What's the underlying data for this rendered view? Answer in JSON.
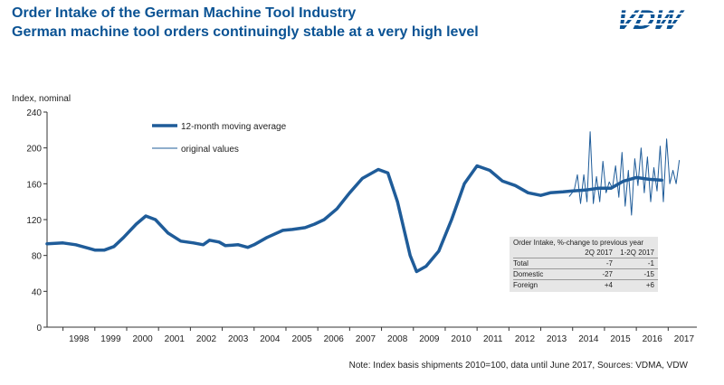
{
  "header": {
    "title_line1": "Order Intake of the German Machine Tool Industry",
    "title_line2": "German machine tool orders continuingly stable at a very high level",
    "logo_text": "VDW"
  },
  "note": "Note: Index basis shipments  2010=100, data until June 2017, Sources: VDMA, VDW",
  "colors": {
    "title": "#0b5394",
    "series": "#1f5c99",
    "axis": "#333333",
    "stat_bg": "#e6e6e6"
  },
  "chart_data": {
    "type": "line",
    "ylabel": "Index, nominal",
    "ylim": [
      0,
      240
    ],
    "yticks": [
      0,
      40,
      80,
      120,
      160,
      200,
      240
    ],
    "x_range": [
      1997.5,
      2017.9
    ],
    "x_tick_labels": [
      "1998",
      "1999",
      "2000",
      "2001",
      "2002",
      "2003",
      "2004",
      "2005",
      "2006",
      "2007",
      "2008",
      "2009",
      "2010",
      "2011",
      "2012",
      "2013",
      "2014",
      "2015",
      "2016",
      "2017"
    ],
    "legend": [
      "12-month moving average",
      "original values"
    ],
    "series": [
      {
        "name": "12-month moving average",
        "points": [
          [
            1997.5,
            93
          ],
          [
            1998.0,
            94
          ],
          [
            1998.4,
            92
          ],
          [
            1998.8,
            88
          ],
          [
            1999.0,
            86
          ],
          [
            1999.3,
            86
          ],
          [
            1999.6,
            90
          ],
          [
            1999.9,
            100
          ],
          [
            2000.3,
            115
          ],
          [
            2000.6,
            124
          ],
          [
            2000.9,
            120
          ],
          [
            2001.3,
            105
          ],
          [
            2001.7,
            96
          ],
          [
            2002.1,
            94
          ],
          [
            2002.4,
            92
          ],
          [
            2002.6,
            97
          ],
          [
            2002.9,
            95
          ],
          [
            2003.1,
            91
          ],
          [
            2003.5,
            92
          ],
          [
            2003.8,
            89
          ],
          [
            2004.0,
            92
          ],
          [
            2004.4,
            100
          ],
          [
            2004.9,
            108
          ],
          [
            2005.2,
            109
          ],
          [
            2005.6,
            111
          ],
          [
            2005.9,
            115
          ],
          [
            2006.2,
            120
          ],
          [
            2006.6,
            132
          ],
          [
            2007.0,
            150
          ],
          [
            2007.4,
            166
          ],
          [
            2007.9,
            176
          ],
          [
            2008.2,
            172
          ],
          [
            2008.5,
            140
          ],
          [
            2008.9,
            80
          ],
          [
            2009.1,
            62
          ],
          [
            2009.4,
            68
          ],
          [
            2009.8,
            85
          ],
          [
            2010.2,
            120
          ],
          [
            2010.6,
            160
          ],
          [
            2011.0,
            180
          ],
          [
            2011.4,
            175
          ],
          [
            2011.8,
            163
          ],
          [
            2012.2,
            158
          ],
          [
            2012.6,
            150
          ],
          [
            2013.0,
            147
          ],
          [
            2013.3,
            150
          ],
          [
            2013.7,
            151
          ],
          [
            2014.0,
            152
          ],
          [
            2014.4,
            153
          ],
          [
            2014.8,
            155
          ],
          [
            2015.2,
            155
          ],
          [
            2015.6,
            163
          ],
          [
            2016.0,
            167
          ],
          [
            2016.4,
            165
          ],
          [
            2016.8,
            164
          ]
        ]
      },
      {
        "name": "original values",
        "points": [
          [
            2013.9,
            146
          ],
          [
            2014.05,
            153
          ],
          [
            2014.15,
            170
          ],
          [
            2014.25,
            138
          ],
          [
            2014.35,
            170
          ],
          [
            2014.45,
            140
          ],
          [
            2014.55,
            218
          ],
          [
            2014.65,
            138
          ],
          [
            2014.75,
            168
          ],
          [
            2014.85,
            140
          ],
          [
            2014.95,
            185
          ],
          [
            2015.05,
            150
          ],
          [
            2015.15,
            162
          ],
          [
            2015.25,
            155
          ],
          [
            2015.35,
            180
          ],
          [
            2015.45,
            145
          ],
          [
            2015.55,
            195
          ],
          [
            2015.65,
            135
          ],
          [
            2015.75,
            175
          ],
          [
            2015.85,
            125
          ],
          [
            2015.95,
            188
          ],
          [
            2016.05,
            158
          ],
          [
            2016.15,
            200
          ],
          [
            2016.25,
            150
          ],
          [
            2016.35,
            190
          ],
          [
            2016.45,
            140
          ],
          [
            2016.55,
            178
          ],
          [
            2016.65,
            152
          ],
          [
            2016.75,
            202
          ],
          [
            2016.85,
            140
          ],
          [
            2016.95,
            210
          ],
          [
            2017.05,
            160
          ],
          [
            2017.15,
            175
          ],
          [
            2017.25,
            160
          ],
          [
            2017.35,
            186
          ]
        ]
      }
    ],
    "table": {
      "title": "Order Intake, %-change to previous year",
      "columns": [
        "",
        "2Q 2017",
        "1-2Q 2017"
      ],
      "rows": [
        [
          "Total",
          "-7",
          "-1"
        ],
        [
          "Domestic",
          "-27",
          "-15"
        ],
        [
          "Foreign",
          "+4",
          "+6"
        ]
      ]
    }
  }
}
